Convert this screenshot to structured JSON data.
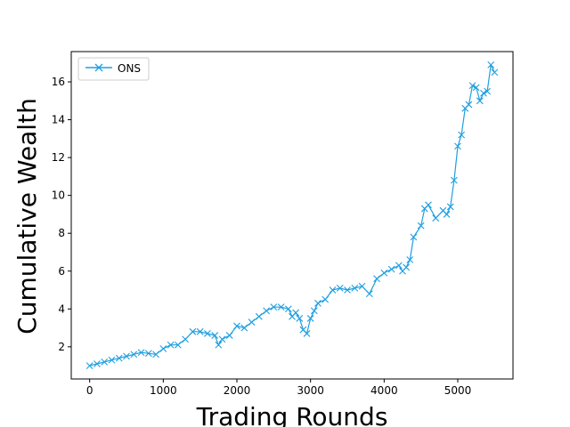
{
  "chart_data": {
    "type": "line",
    "title": "",
    "xlabel": "Trading Rounds",
    "ylabel": "Cumulative Wealth",
    "xlim": [
      -250,
      5750
    ],
    "ylim": [
      0.3,
      17.6
    ],
    "xticks": [
      0,
      1000,
      2000,
      3000,
      4000,
      5000
    ],
    "yticks": [
      2,
      4,
      6,
      8,
      10,
      12,
      14,
      16
    ],
    "grid": false,
    "legend_position": "top-left",
    "marker": "x",
    "series": [
      {
        "name": "ONS",
        "color": "#1f9fe0",
        "x": [
          0,
          100,
          200,
          300,
          400,
          500,
          600,
          700,
          800,
          900,
          1000,
          1100,
          1200,
          1300,
          1400,
          1500,
          1600,
          1700,
          1750,
          1800,
          1900,
          2000,
          2100,
          2200,
          2300,
          2400,
          2500,
          2600,
          2700,
          2750,
          2800,
          2850,
          2900,
          2950,
          3000,
          3050,
          3100,
          3200,
          3300,
          3400,
          3500,
          3600,
          3700,
          3800,
          3900,
          4000,
          4100,
          4200,
          4250,
          4300,
          4350,
          4400,
          4500,
          4550,
          4600,
          4700,
          4800,
          4850,
          4900,
          4950,
          5000,
          5050,
          5100,
          5150,
          5200,
          5250,
          5300,
          5350,
          5400,
          5450,
          5500
        ],
        "y": [
          1.0,
          1.1,
          1.2,
          1.3,
          1.4,
          1.5,
          1.6,
          1.7,
          1.65,
          1.6,
          1.9,
          2.1,
          2.1,
          2.4,
          2.8,
          2.8,
          2.7,
          2.6,
          2.1,
          2.4,
          2.6,
          3.1,
          3.0,
          3.3,
          3.6,
          3.9,
          4.1,
          4.1,
          4.0,
          3.6,
          3.8,
          3.5,
          2.9,
          2.7,
          3.5,
          3.9,
          4.3,
          4.5,
          5.0,
          5.1,
          5.0,
          5.1,
          5.2,
          4.8,
          5.6,
          5.9,
          6.1,
          6.3,
          6.0,
          6.2,
          6.6,
          7.8,
          8.4,
          9.3,
          9.5,
          8.8,
          9.2,
          9.0,
          9.4,
          10.8,
          12.6,
          13.2,
          14.6,
          14.8,
          15.8,
          15.7,
          15.0,
          15.4,
          15.5,
          16.9,
          16.5
        ]
      }
    ]
  }
}
